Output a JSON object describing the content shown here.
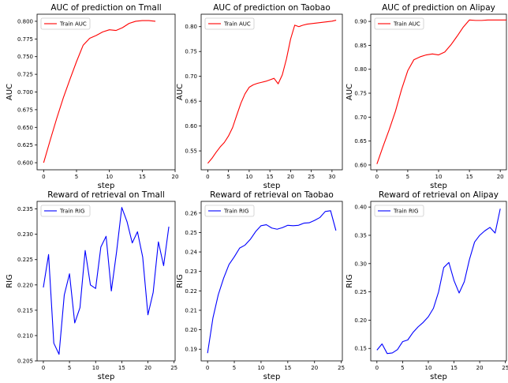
{
  "chart_data": [
    {
      "type": "line",
      "title": "AUC of prediction on Tmall",
      "xlabel": "step",
      "ylabel": "AUC",
      "xlim": [
        -1,
        20
      ],
      "ylim": [
        0.59,
        0.81
      ],
      "xticks": [
        "0",
        "5",
        "10",
        "15",
        "20"
      ],
      "yticks": [
        "0.600",
        "0.625",
        "0.650",
        "0.675",
        "0.700",
        "0.725",
        "0.750",
        "0.775",
        "0.800"
      ],
      "legend_position": "upper-left",
      "series": [
        {
          "name": "Train AUC",
          "color": "#ff0000",
          "x": [
            0,
            1,
            2,
            3,
            4,
            5,
            6,
            7,
            8,
            9,
            10,
            11,
            12,
            13,
            14,
            15,
            16,
            17
          ],
          "y": [
            0.6,
            0.632,
            0.663,
            0.692,
            0.718,
            0.743,
            0.766,
            0.776,
            0.78,
            0.785,
            0.788,
            0.787,
            0.791,
            0.797,
            0.8,
            0.801,
            0.801,
            0.8
          ]
        }
      ]
    },
    {
      "type": "line",
      "title": "AUC of prediction on Taobao",
      "xlabel": "step",
      "ylabel": "AUC",
      "xlim": [
        -1.6,
        32.5
      ],
      "ylim": [
        0.512,
        0.825
      ],
      "xticks": [
        "0",
        "5",
        "10",
        "15",
        "20",
        "25",
        "30"
      ],
      "yticks": [
        "0.55",
        "0.60",
        "0.65",
        "0.70",
        "0.75",
        "0.80"
      ],
      "legend_position": "upper-left",
      "series": [
        {
          "name": "Train AUC",
          "color": "#ff0000",
          "x": [
            0,
            1,
            2,
            3,
            4,
            5,
            6,
            7,
            8,
            9,
            10,
            11,
            12,
            13,
            14,
            15,
            16,
            17,
            18,
            19,
            20,
            21,
            22,
            23,
            24,
            25,
            26,
            27,
            28,
            29,
            30,
            31
          ],
          "y": [
            0.525,
            0.535,
            0.547,
            0.558,
            0.567,
            0.58,
            0.597,
            0.622,
            0.646,
            0.665,
            0.678,
            0.683,
            0.686,
            0.688,
            0.69,
            0.693,
            0.696,
            0.685,
            0.703,
            0.735,
            0.775,
            0.803,
            0.8,
            0.803,
            0.805,
            0.806,
            0.807,
            0.808,
            0.809,
            0.81,
            0.811,
            0.813
          ]
        }
      ]
    },
    {
      "type": "line",
      "title": "AUC of prediction on Alipay",
      "xlabel": "step",
      "ylabel": "AUC",
      "xlim": [
        -1,
        21
      ],
      "ylim": [
        0.59,
        0.915
      ],
      "xticks": [
        "0",
        "5",
        "10",
        "15",
        "20"
      ],
      "yticks": [
        "0.60",
        "0.65",
        "0.70",
        "0.75",
        "0.80",
        "0.85",
        "0.90"
      ],
      "legend_position": "upper-left",
      "series": [
        {
          "name": "Train AUC",
          "color": "#ff0000",
          "x": [
            0,
            1,
            2,
            3,
            4,
            5,
            6,
            7,
            8,
            9,
            10,
            11,
            12,
            13,
            14,
            15,
            16,
            17,
            18,
            19,
            20,
            21
          ],
          "y": [
            0.602,
            0.639,
            0.674,
            0.712,
            0.758,
            0.797,
            0.82,
            0.826,
            0.83,
            0.832,
            0.83,
            0.836,
            0.851,
            0.869,
            0.888,
            0.903,
            0.902,
            0.902,
            0.903,
            0.903,
            0.903,
            0.903
          ]
        }
      ]
    },
    {
      "type": "line",
      "title": "Reward of retrieval on Tmall",
      "xlabel": "step",
      "ylabel": "RIG",
      "xlim": [
        -1.2,
        25.2
      ],
      "ylim": [
        0.205,
        0.2365
      ],
      "xticks": [
        "0",
        "5",
        "10",
        "15",
        "20",
        "25"
      ],
      "yticks": [
        "0.205",
        "0.210",
        "0.215",
        "0.220",
        "0.225",
        "0.230",
        "0.235"
      ],
      "legend_position": "upper-left",
      "series": [
        {
          "name": "Train RIG",
          "color": "#0000ff",
          "x": [
            0,
            1,
            2,
            3,
            4,
            5,
            6,
            7,
            8,
            9,
            10,
            11,
            12,
            13,
            14,
            15,
            16,
            17,
            18,
            19,
            20,
            21,
            22,
            23,
            24
          ],
          "y": [
            0.2195,
            0.226,
            0.2085,
            0.2063,
            0.218,
            0.2222,
            0.2125,
            0.2155,
            0.2268,
            0.22,
            0.2193,
            0.2275,
            0.2296,
            0.2188,
            0.2265,
            0.2353,
            0.2325,
            0.2283,
            0.2305,
            0.2255,
            0.2141,
            0.2185,
            0.2285,
            0.2238,
            0.2315
          ]
        }
      ]
    },
    {
      "type": "line",
      "title": "Reward of retrieval on Taobao",
      "xlabel": "step",
      "ylabel": "RIG",
      "xlim": [
        -1.2,
        25.2
      ],
      "ylim": [
        0.184,
        0.266
      ],
      "xticks": [
        "0",
        "5",
        "10",
        "15",
        "20",
        "25"
      ],
      "yticks": [
        "0.19",
        "0.20",
        "0.21",
        "0.22",
        "0.23",
        "0.24",
        "0.25",
        "0.26"
      ],
      "legend_position": "upper-left",
      "series": [
        {
          "name": "Train RIG",
          "color": "#0000ff",
          "x": [
            0,
            1,
            2,
            3,
            4,
            5,
            6,
            7,
            8,
            9,
            10,
            11,
            12,
            13,
            14,
            15,
            16,
            17,
            18,
            19,
            20,
            21,
            22,
            23,
            24
          ],
          "y": [
            0.188,
            0.206,
            0.218,
            0.2265,
            0.2335,
            0.2375,
            0.242,
            0.2435,
            0.2465,
            0.2505,
            0.2535,
            0.254,
            0.2523,
            0.2517,
            0.2525,
            0.2537,
            0.2535,
            0.2537,
            0.2548,
            0.255,
            0.2562,
            0.2577,
            0.2608,
            0.2612,
            0.251
          ]
        }
      ]
    },
    {
      "type": "line",
      "title": "Reward of retrieval on Alipay",
      "xlabel": "step",
      "ylabel": "RIG",
      "xlim": [
        -1.2,
        25.2
      ],
      "ylim": [
        0.128,
        0.41
      ],
      "xticks": [
        "0",
        "5",
        "10",
        "15",
        "20",
        "25"
      ],
      "yticks": [
        "0.15",
        "0.20",
        "0.25",
        "0.30",
        "0.35",
        "0.40"
      ],
      "legend_position": "upper-left",
      "series": [
        {
          "name": "Train RIG",
          "color": "#0000ff",
          "x": [
            0,
            1,
            2,
            3,
            4,
            5,
            6,
            7,
            8,
            9,
            10,
            11,
            12,
            13,
            14,
            15,
            16,
            17,
            18,
            19,
            20,
            21,
            22,
            23,
            24
          ],
          "y": [
            0.147,
            0.158,
            0.141,
            0.142,
            0.148,
            0.162,
            0.165,
            0.178,
            0.188,
            0.196,
            0.206,
            0.221,
            0.25,
            0.293,
            0.302,
            0.27,
            0.248,
            0.268,
            0.307,
            0.338,
            0.35,
            0.358,
            0.364,
            0.354,
            0.397
          ]
        }
      ]
    }
  ]
}
